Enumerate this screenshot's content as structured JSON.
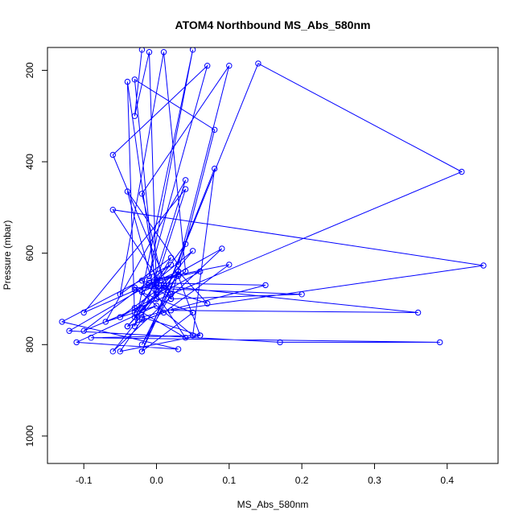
{
  "chart_data": {
    "type": "line",
    "title": "ATOM4 Northbound MS_Abs_580nm",
    "xlabel": "MS_Abs_580nm",
    "ylabel": "Pressure (mbar)",
    "xlim": [
      -0.15,
      0.47
    ],
    "ylim": [
      1060,
      150
    ],
    "y_reversed": true,
    "xticks": [
      -0.1,
      0.0,
      0.1,
      0.2,
      0.3,
      0.4
    ],
    "xtick_labels": [
      "-0.1",
      "0.0",
      "0.1",
      "0.2",
      "0.3",
      "0.4"
    ],
    "yticks": [
      200,
      400,
      600,
      800,
      1000
    ],
    "ytick_labels": [
      "200",
      "400",
      "600",
      "800",
      "1000"
    ],
    "grid": false,
    "marker": "open-circle",
    "color": "#0000ff",
    "series": [
      {
        "x": [
          -0.02,
          -0.03,
          -0.01,
          0.0,
          -0.04,
          -0.03,
          0.02,
          -0.05,
          0.01,
          0.04,
          -0.02,
          -0.03,
          0.05,
          -0.01,
          0.07,
          -0.06,
          0.02,
          -0.02,
          0.03,
          0.08,
          -0.03,
          0.0,
          -0.04,
          0.03,
          0.1,
          -0.02,
          0.01,
          -0.05,
          0.06,
          -0.01,
          0.02,
          0.04,
          -0.03,
          0.0,
          0.15,
          -0.02,
          0.06,
          0.03,
          -0.01,
          0.1,
          0.01,
          -0.04,
          0.05,
          -0.02,
          0.0,
          0.36,
          0.02,
          0.45,
          -0.06,
          0.02,
          0.2,
          -0.03,
          0.05,
          0.08,
          -0.02,
          0.03,
          -0.1,
          0.04,
          0.0,
          -0.12,
          0.17,
          0.39,
          -0.09,
          0.06,
          -0.05,
          -0.02,
          0.04,
          -0.07,
          0.0,
          -0.11,
          0.03,
          -0.13,
          0.02,
          -0.1,
          0.42,
          0.14,
          -0.02,
          0.05,
          -0.03,
          0.0,
          0.09,
          -0.06,
          0.01,
          -0.04,
          0.03,
          0.07,
          -0.02,
          0.0,
          0.04,
          -0.03
        ],
        "y": [
          155,
          300,
          160,
          680,
          225,
          740,
          610,
          690,
          160,
          640,
          720,
          760,
          155,
          650,
          190,
          385,
          690,
          800,
          640,
          330,
          220,
          700,
          465,
          625,
          190,
          470,
          670,
          740,
          640,
          665,
          700,
          580,
          730,
          665,
          670,
          740,
          780,
          650,
          660,
          625,
          730,
          760,
          595,
          685,
          670,
          730,
          725,
          627,
          505,
          700,
          690,
          675,
          780,
          415,
          815,
          640,
          730,
          460,
          660,
          770,
          795,
          795,
          785,
          780,
          815,
          745,
          440,
          750,
          715,
          795,
          810,
          750,
          625,
          770,
          422,
          185,
          815,
          730,
          680,
          670,
          590,
          815,
          675,
          760,
          640,
          710,
          660,
          690,
          785,
          720
        ]
      }
    ]
  }
}
